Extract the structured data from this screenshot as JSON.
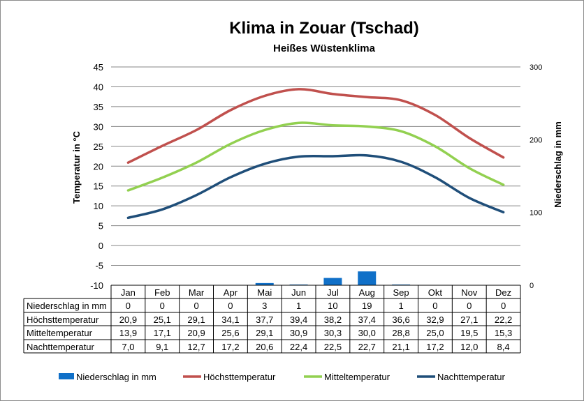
{
  "chart_data": {
    "type": "line",
    "title": "Klima in Zouar (Tschad)",
    "subtitle": "Heißes Wüstenklima",
    "ylabel": "Temperatur in °C",
    "y2label": "Niederschlag in mm",
    "ylim": [
      -10,
      45
    ],
    "y2lim": [
      0,
      300
    ],
    "yticks": [
      45,
      40,
      35,
      30,
      25,
      20,
      15,
      10,
      5,
      0,
      -5,
      -10
    ],
    "y2ticks": [
      300,
      200,
      100,
      0
    ],
    "grid": true,
    "legend": "bottom",
    "categories": [
      "Jan",
      "Feb",
      "Mar",
      "Apr",
      "Mai",
      "Jun",
      "Jul",
      "Aug",
      "Sep",
      "Okt",
      "Nov",
      "Dez"
    ],
    "series": [
      {
        "name": "Niederschlag in mm",
        "kind": "bar",
        "axis": "right",
        "color": "#1070c8",
        "values": [
          0,
          0,
          0,
          0,
          3,
          1,
          10,
          19,
          1,
          0,
          0,
          0
        ],
        "labels": [
          "0",
          "0",
          "0",
          "0",
          "3",
          "1",
          "10",
          "19",
          "1",
          "0",
          "0",
          "0"
        ]
      },
      {
        "name": "Höchsttemperatur",
        "kind": "line",
        "axis": "left",
        "color": "#c0504d",
        "values": [
          20.9,
          25.1,
          29.1,
          34.1,
          37.7,
          39.4,
          38.2,
          37.4,
          36.6,
          32.9,
          27.1,
          22.2
        ],
        "labels": [
          "20,9",
          "25,1",
          "29,1",
          "34,1",
          "37,7",
          "39,4",
          "38,2",
          "37,4",
          "36,6",
          "32,9",
          "27,1",
          "22,2"
        ]
      },
      {
        "name": "Mitteltemperatur",
        "kind": "line",
        "axis": "left",
        "color": "#92d050",
        "values": [
          13.9,
          17.1,
          20.9,
          25.6,
          29.1,
          30.9,
          30.3,
          30.0,
          28.8,
          25.0,
          19.5,
          15.3
        ],
        "labels": [
          "13,9",
          "17,1",
          "20,9",
          "25,6",
          "29,1",
          "30,9",
          "30,3",
          "30,0",
          "28,8",
          "25,0",
          "19,5",
          "15,3"
        ]
      },
      {
        "name": "Nachttemperatur",
        "kind": "line",
        "axis": "left",
        "color": "#1f4e79",
        "values": [
          7.0,
          9.1,
          12.7,
          17.2,
          20.6,
          22.4,
          22.5,
          22.7,
          21.1,
          17.2,
          12.0,
          8.4
        ],
        "labels": [
          "7,0",
          "9,1",
          "12,7",
          "17,2",
          "20,6",
          "22,4",
          "22,5",
          "22,7",
          "21,1",
          "17,2",
          "12,0",
          "8,4"
        ]
      }
    ]
  }
}
